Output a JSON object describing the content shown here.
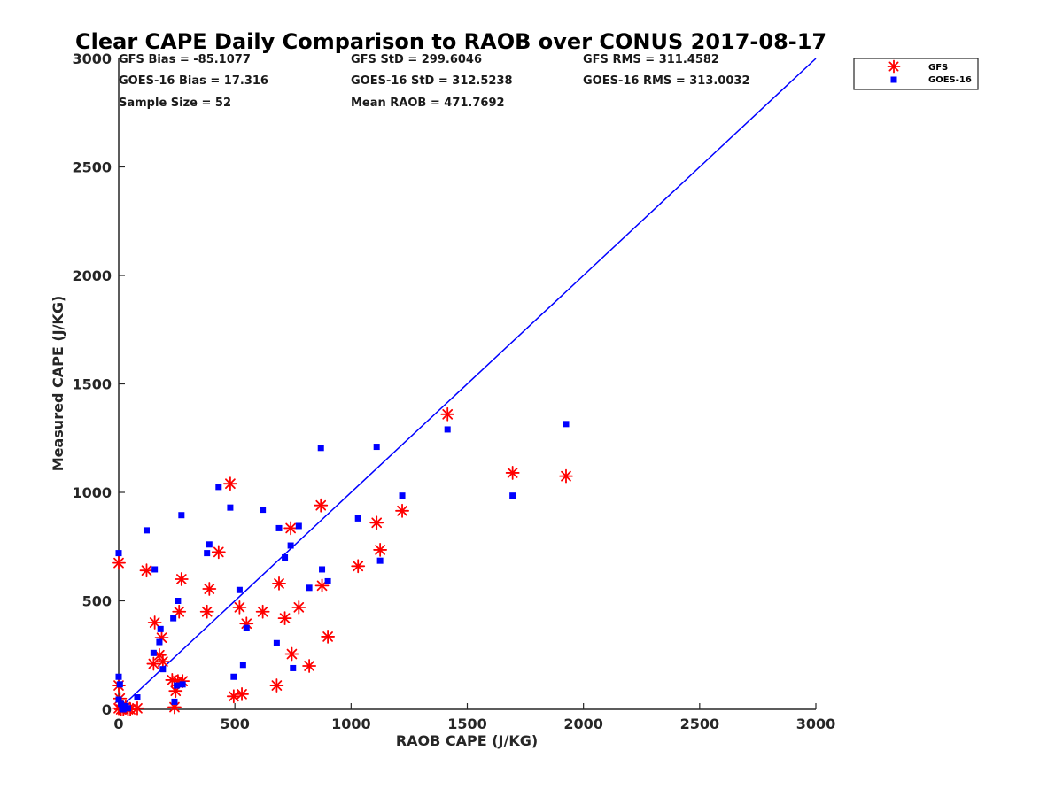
{
  "chart_data": {
    "type": "scatter",
    "title": "Clear CAPE Daily Comparison to RAOB over CONUS 2017-08-17",
    "xlabel": "RAOB CAPE (J/KG)",
    "ylabel": "Measured CAPE (J/KG)",
    "xlim": [
      0,
      3000
    ],
    "ylim": [
      0,
      3000
    ],
    "xticks": [
      "0",
      "500",
      "1000",
      "1500",
      "2000",
      "2500",
      "3000"
    ],
    "yticks": [
      "0",
      "500",
      "1000",
      "1500",
      "2000",
      "2500",
      "3000"
    ],
    "grid": false,
    "legend_position": "top-right",
    "stats": {
      "gfs_bias": "GFS Bias = -85.1077",
      "gfs_std": "GFS StD = 299.6046",
      "gfs_rms": "GFS RMS = 311.4582",
      "goes_bias": "GOES-16 Bias = 17.316",
      "goes_std": "GOES-16 StD = 312.5238",
      "goes_rms": "GOES-16 RMS = 313.0032",
      "sample_size": "Sample Size = 52",
      "mean_raob": "Mean RAOB = 471.7692"
    },
    "reference_line": {
      "color": "#0000ff",
      "x": [
        0,
        3000
      ],
      "y": [
        0,
        3000
      ]
    },
    "series": [
      {
        "name": "GFS",
        "marker": "asterisk",
        "color": "#ff0000",
        "points": [
          [
            0,
            675
          ],
          [
            0,
            110
          ],
          [
            0,
            5
          ],
          [
            5,
            50
          ],
          [
            10,
            0
          ],
          [
            20,
            0
          ],
          [
            30,
            10
          ],
          [
            40,
            0
          ],
          [
            50,
            0
          ],
          [
            80,
            5
          ],
          [
            120,
            640
          ],
          [
            150,
            210
          ],
          [
            155,
            400
          ],
          [
            175,
            250
          ],
          [
            185,
            330
          ],
          [
            190,
            220
          ],
          [
            230,
            135
          ],
          [
            240,
            10
          ],
          [
            245,
            85
          ],
          [
            255,
            130
          ],
          [
            260,
            450
          ],
          [
            270,
            600
          ],
          [
            275,
            130
          ],
          [
            380,
            450
          ],
          [
            390,
            555
          ],
          [
            430,
            725
          ],
          [
            480,
            1040
          ],
          [
            495,
            60
          ],
          [
            520,
            470
          ],
          [
            530,
            70
          ],
          [
            550,
            395
          ],
          [
            620,
            450
          ],
          [
            680,
            110
          ],
          [
            690,
            580
          ],
          [
            715,
            420
          ],
          [
            740,
            835
          ],
          [
            745,
            255
          ],
          [
            775,
            470
          ],
          [
            820,
            200
          ],
          [
            870,
            940
          ],
          [
            875,
            570
          ],
          [
            900,
            335
          ],
          [
            1030,
            660
          ],
          [
            1110,
            860
          ],
          [
            1125,
            735
          ],
          [
            1220,
            915
          ],
          [
            1415,
            1360
          ],
          [
            1695,
            1090
          ],
          [
            1925,
            1075
          ]
        ]
      },
      {
        "name": "GOES-16",
        "marker": "square",
        "color": "#0000ff",
        "points": [
          [
            0,
            720
          ],
          [
            0,
            150
          ],
          [
            5,
            115
          ],
          [
            0,
            45
          ],
          [
            10,
            25
          ],
          [
            15,
            5
          ],
          [
            20,
            0
          ],
          [
            30,
            15
          ],
          [
            40,
            5
          ],
          [
            80,
            55
          ],
          [
            120,
            825
          ],
          [
            150,
            260
          ],
          [
            155,
            645
          ],
          [
            175,
            310
          ],
          [
            180,
            370
          ],
          [
            190,
            185
          ],
          [
            235,
            420
          ],
          [
            240,
            35
          ],
          [
            250,
            110
          ],
          [
            255,
            500
          ],
          [
            270,
            895
          ],
          [
            275,
            115
          ],
          [
            380,
            720
          ],
          [
            390,
            760
          ],
          [
            430,
            1025
          ],
          [
            480,
            930
          ],
          [
            495,
            150
          ],
          [
            520,
            550
          ],
          [
            535,
            205
          ],
          [
            550,
            375
          ],
          [
            620,
            920
          ],
          [
            680,
            305
          ],
          [
            690,
            835
          ],
          [
            715,
            700
          ],
          [
            740,
            755
          ],
          [
            750,
            190
          ],
          [
            775,
            845
          ],
          [
            820,
            560
          ],
          [
            870,
            1205
          ],
          [
            875,
            645
          ],
          [
            900,
            590
          ],
          [
            1030,
            880
          ],
          [
            1110,
            1210
          ],
          [
            1125,
            685
          ],
          [
            1220,
            985
          ],
          [
            1415,
            1290
          ],
          [
            1695,
            985
          ],
          [
            1925,
            1315
          ]
        ]
      }
    ]
  }
}
